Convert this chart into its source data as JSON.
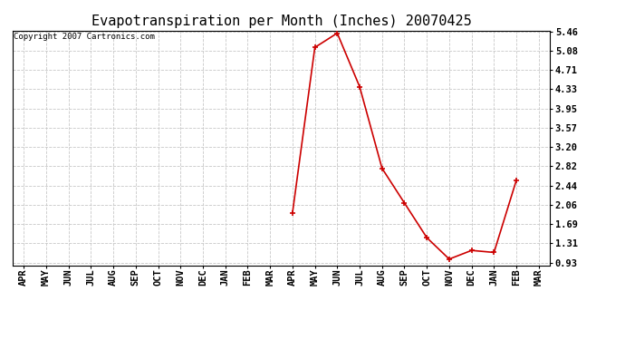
{
  "title": "Evapotranspiration per Month (Inches) 20070425",
  "copyright": "Copyright 2007 Cartronics.com",
  "months": [
    "APR",
    "MAY",
    "JUN",
    "JUL",
    "AUG",
    "SEP",
    "OCT",
    "NOV",
    "DEC",
    "JAN",
    "FEB",
    "MAR",
    "APR",
    "MAY",
    "JUN",
    "JUL",
    "AUG",
    "SEP",
    "OCT",
    "NOV",
    "DEC",
    "JAN",
    "FEB",
    "MAR"
  ],
  "values": [
    null,
    null,
    null,
    null,
    null,
    null,
    null,
    null,
    null,
    null,
    null,
    null,
    1.9,
    5.15,
    5.43,
    4.38,
    2.78,
    2.1,
    1.42,
    1.0,
    1.17,
    1.13,
    2.55,
    null
  ],
  "yticks": [
    0.93,
    1.31,
    1.69,
    2.06,
    2.44,
    2.82,
    3.2,
    3.57,
    3.95,
    4.33,
    4.71,
    5.08,
    5.46
  ],
  "line_color": "#cc0000",
  "marker_color": "#cc0000",
  "plot_bg": "#ffffff",
  "grid_color": "#c8c8c8",
  "title_fontsize": 11,
  "tick_fontsize": 7.5,
  "copyright_fontsize": 6.5,
  "ylim_min": 0.93,
  "ylim_max": 5.46
}
